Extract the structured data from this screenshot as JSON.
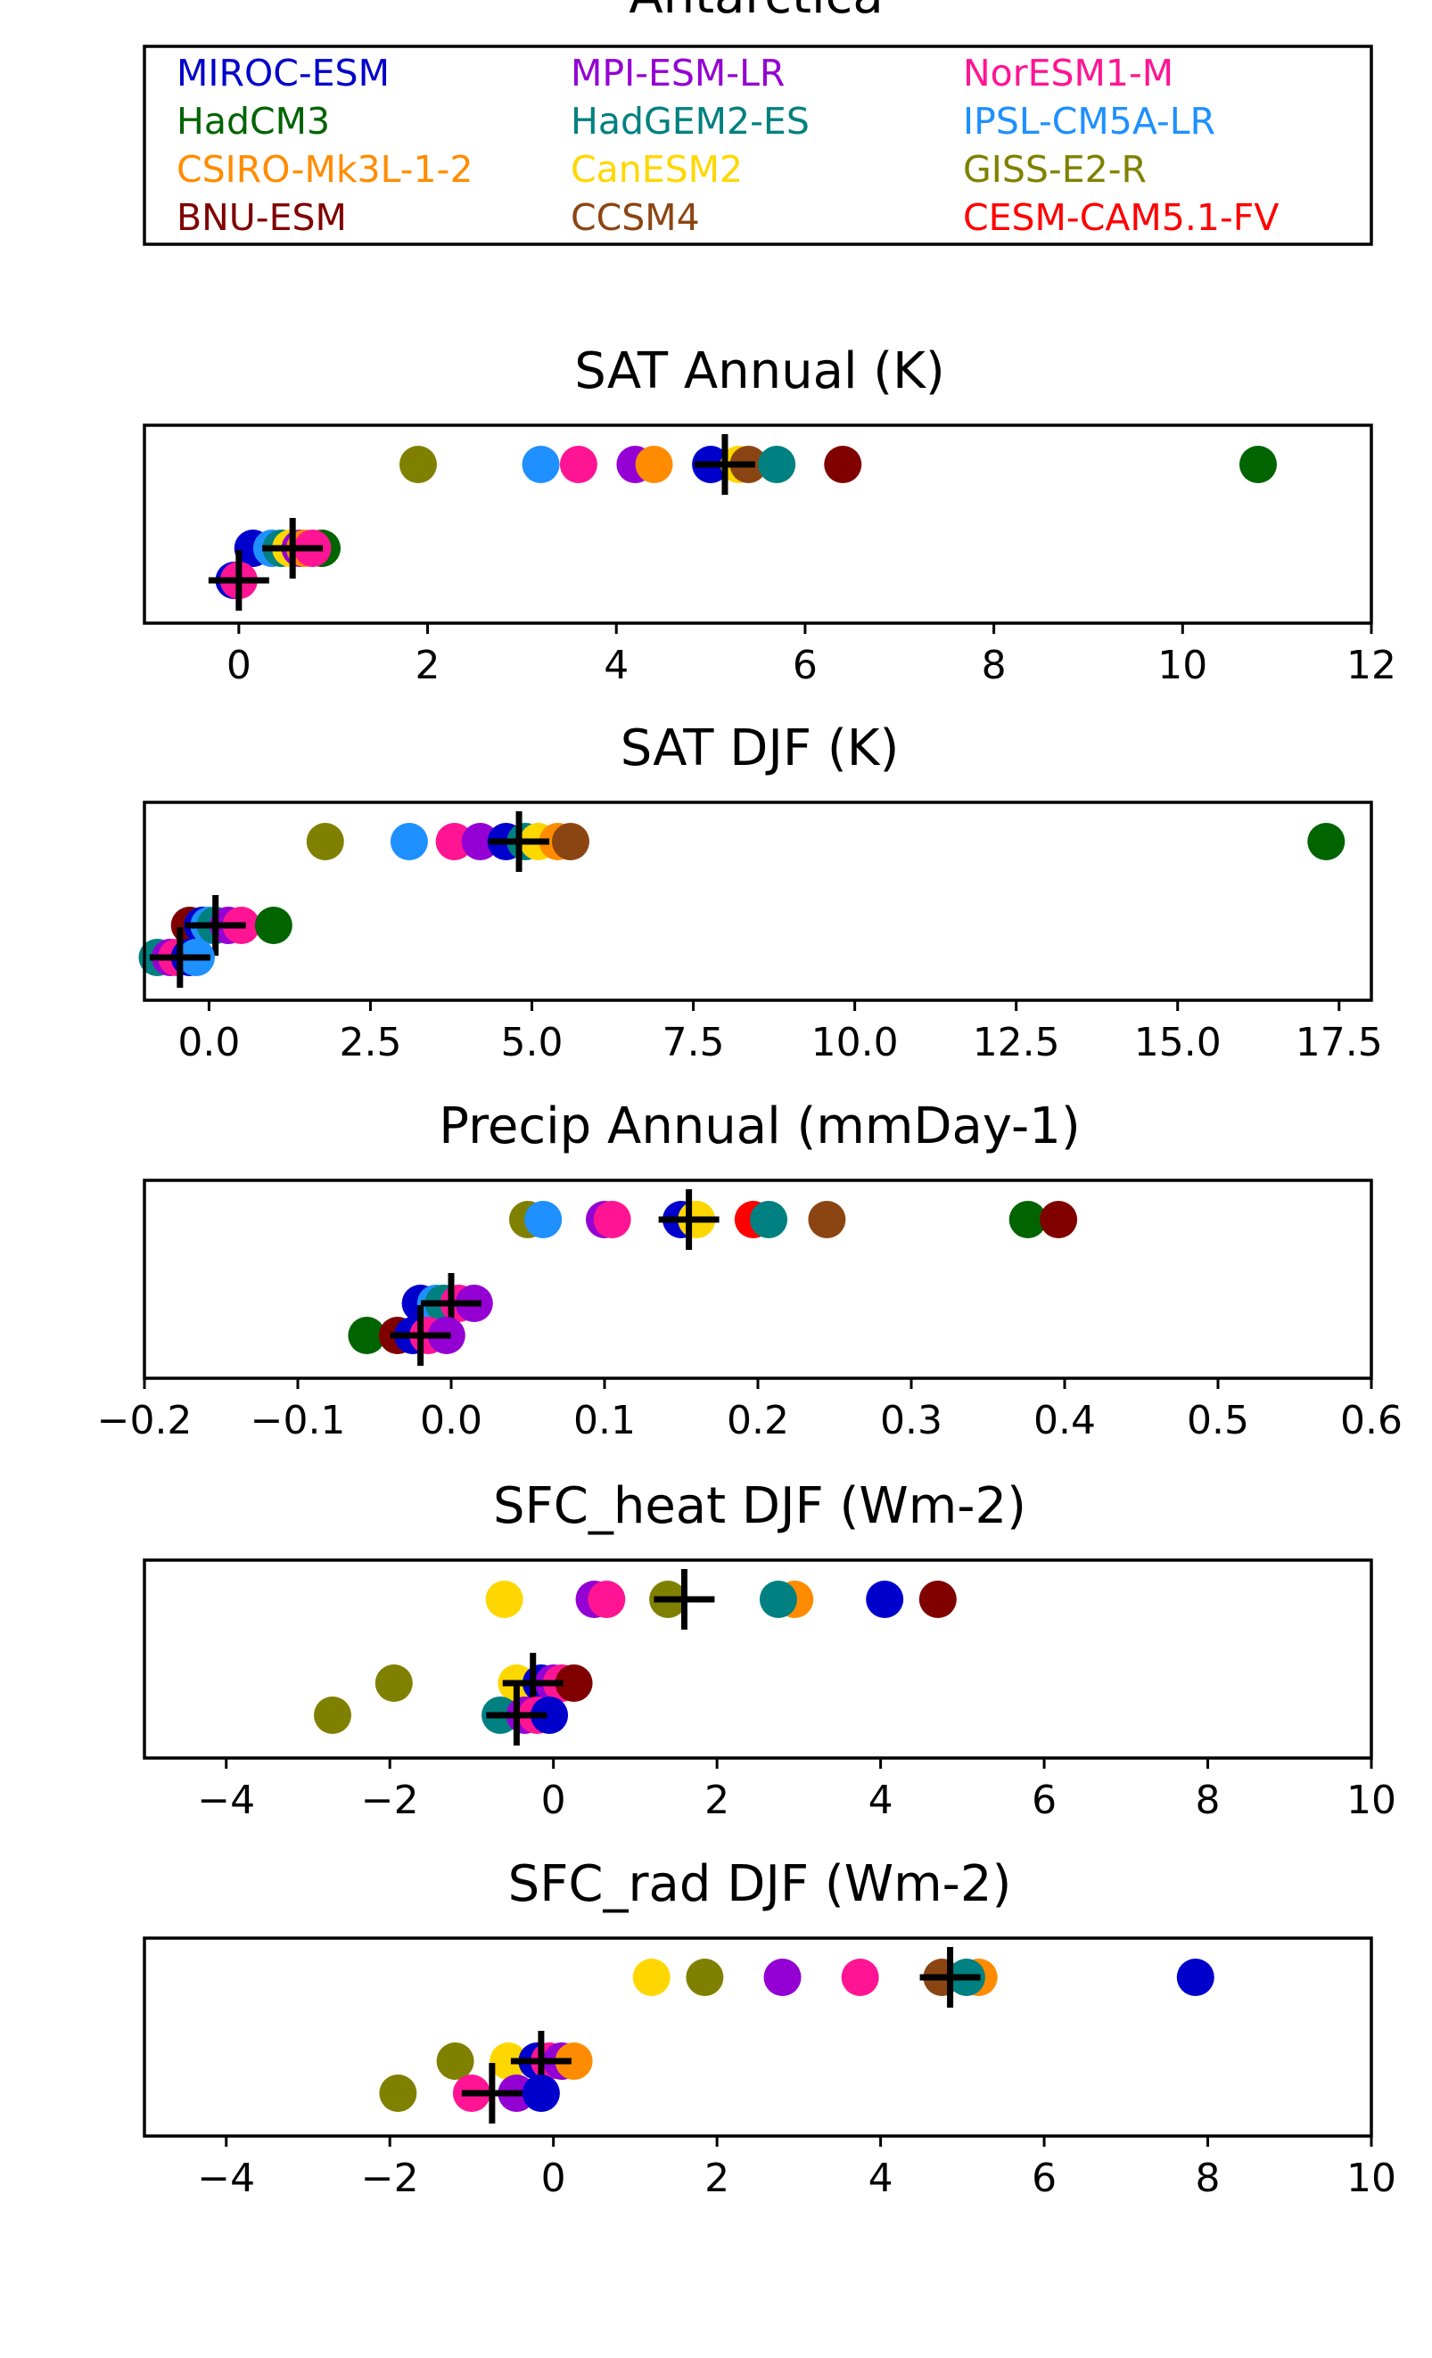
{
  "figure": {
    "title": "Antarctica"
  },
  "legend": {
    "entries": [
      {
        "name": "MIROC-ESM",
        "color": "#0000cc"
      },
      {
        "name": "HadCM3",
        "color": "#006400"
      },
      {
        "name": "CSIRO-Mk3L-1-2",
        "color": "#ff8c00"
      },
      {
        "name": "BNU-ESM",
        "color": "#800000"
      },
      {
        "name": "MPI-ESM-LR",
        "color": "#9400d3"
      },
      {
        "name": "HadGEM2-ES",
        "color": "#008080"
      },
      {
        "name": "CanESM2",
        "color": "#ffd700"
      },
      {
        "name": "CCSM4",
        "color": "#8b4513"
      },
      {
        "name": "NorESM1-M",
        "color": "#ff1493"
      },
      {
        "name": "IPSL-CM5A-LR",
        "color": "#1e90ff"
      },
      {
        "name": "GISS-E2-R",
        "color": "#808000"
      },
      {
        "name": "CESM-CAM5.1-FV",
        "color": "#ff0000"
      }
    ]
  },
  "chart_data": [
    {
      "type": "scatter",
      "title": "SAT Annual (K)",
      "xlim": [
        -1,
        12
      ],
      "xticks": [
        0,
        2,
        4,
        6,
        8,
        10,
        12
      ],
      "xtick_labels": [
        "0",
        "2",
        "4",
        "6",
        "8",
        "10",
        "12"
      ],
      "rows": [
        {
          "points": [
            {
              "model": "GISS-E2-R",
              "x": 1.9
            },
            {
              "model": "IPSL-CM5A-LR",
              "x": 3.2
            },
            {
              "model": "NorESM1-M",
              "x": 3.6
            },
            {
              "model": "MPI-ESM-LR",
              "x": 4.2
            },
            {
              "model": "CSIRO-Mk3L-1-2",
              "x": 4.4
            },
            {
              "model": "MIROC-ESM",
              "x": 5.0
            },
            {
              "model": "CanESM2",
              "x": 5.3
            },
            {
              "model": "CCSM4",
              "x": 5.4
            },
            {
              "model": "HadGEM2-ES",
              "x": 5.7
            },
            {
              "model": "BNU-ESM",
              "x": 6.4
            },
            {
              "model": "HadCM3",
              "x": 10.8
            }
          ],
          "mean": 5.15
        },
        {
          "points": [
            {
              "model": "MIROC-ESM",
              "x": 0.15
            },
            {
              "model": "IPSL-CM5A-LR",
              "x": 0.35
            },
            {
              "model": "HadGEM2-ES",
              "x": 0.45
            },
            {
              "model": "CanESM2",
              "x": 0.55
            },
            {
              "model": "MPI-ESM-LR",
              "x": 0.65
            },
            {
              "model": "CSIRO-Mk3L-1-2",
              "x": 0.7
            },
            {
              "model": "HadCM3",
              "x": 0.88
            },
            {
              "model": "NorESM1-M",
              "x": 0.78
            }
          ],
          "mean": 0.57
        },
        {
          "points": [
            {
              "model": "MIROC-ESM",
              "x": -0.05
            },
            {
              "model": "MPI-ESM-LR",
              "x": 0.0
            },
            {
              "model": "NorESM1-M",
              "x": 0.0
            }
          ],
          "mean": 0.0
        }
      ]
    },
    {
      "type": "scatter",
      "title": "SAT DJF (K)",
      "xlim": [
        -1,
        18
      ],
      "xticks": [
        0,
        2.5,
        5,
        7.5,
        10,
        12.5,
        15,
        17.5
      ],
      "xtick_labels": [
        "0.0",
        "2.5",
        "5.0",
        "7.5",
        "10.0",
        "12.5",
        "15.0",
        "17.5"
      ],
      "rows": [
        {
          "points": [
            {
              "model": "GISS-E2-R",
              "x": 1.8
            },
            {
              "model": "IPSL-CM5A-LR",
              "x": 3.1
            },
            {
              "model": "NorESM1-M",
              "x": 3.8
            },
            {
              "model": "MPI-ESM-LR",
              "x": 4.2
            },
            {
              "model": "MIROC-ESM",
              "x": 4.6
            },
            {
              "model": "HadGEM2-ES",
              "x": 4.9
            },
            {
              "model": "CanESM2",
              "x": 5.1
            },
            {
              "model": "CSIRO-Mk3L-1-2",
              "x": 5.4
            },
            {
              "model": "CCSM4",
              "x": 5.6
            },
            {
              "model": "HadCM3",
              "x": 17.3
            }
          ],
          "mean": 4.8
        },
        {
          "points": [
            {
              "model": "BNU-ESM",
              "x": -0.3
            },
            {
              "model": "MIROC-ESM",
              "x": -0.1
            },
            {
              "model": "IPSL-CM5A-LR",
              "x": 0.0
            },
            {
              "model": "HadGEM2-ES",
              "x": 0.1
            },
            {
              "model": "MPI-ESM-LR",
              "x": 0.3
            },
            {
              "model": "NorESM1-M",
              "x": 0.5
            },
            {
              "model": "HadCM3",
              "x": 1.0
            }
          ],
          "mean": 0.1
        },
        {
          "points": [
            {
              "model": "HadGEM2-ES",
              "x": -0.8
            },
            {
              "model": "MPI-ESM-LR",
              "x": -0.6
            },
            {
              "model": "NorESM1-M",
              "x": -0.5
            },
            {
              "model": "MIROC-ESM",
              "x": -0.3
            },
            {
              "model": "IPSL-CM5A-LR",
              "x": -0.2
            }
          ],
          "mean": -0.45
        }
      ]
    },
    {
      "type": "scatter",
      "title": "Precip Annual (mmDay-1)",
      "xlim": [
        -0.2,
        0.6
      ],
      "xticks": [
        -0.2,
        -0.1,
        0.0,
        0.1,
        0.2,
        0.3,
        0.4,
        0.5,
        0.6
      ],
      "xtick_labels": [
        "−0.2",
        "−0.1",
        "0.0",
        "0.1",
        "0.2",
        "0.3",
        "0.4",
        "0.5",
        "0.6"
      ],
      "rows": [
        {
          "points": [
            {
              "model": "GISS-E2-R",
              "x": 0.05
            },
            {
              "model": "IPSL-CM5A-LR",
              "x": 0.06
            },
            {
              "model": "MPI-ESM-LR",
              "x": 0.1
            },
            {
              "model": "NorESM1-M",
              "x": 0.105
            },
            {
              "model": "MIROC-ESM",
              "x": 0.15
            },
            {
              "model": "CanESM2",
              "x": 0.16
            },
            {
              "model": "CESM-CAM5.1-FV",
              "x": 0.197
            },
            {
              "model": "HadGEM2-ES",
              "x": 0.207
            },
            {
              "model": "CCSM4",
              "x": 0.245
            },
            {
              "model": "HadCM3",
              "x": 0.376
            },
            {
              "model": "BNU-ESM",
              "x": 0.396
            }
          ],
          "mean": 0.155
        },
        {
          "points": [
            {
              "model": "MIROC-ESM",
              "x": -0.02
            },
            {
              "model": "IPSL-CM5A-LR",
              "x": -0.01
            },
            {
              "model": "HadGEM2-ES",
              "x": -0.005
            },
            {
              "model": "NorESM1-M",
              "x": 0.005
            },
            {
              "model": "MPI-ESM-LR",
              "x": 0.015
            }
          ],
          "mean": 0.0
        },
        {
          "points": [
            {
              "model": "HadCM3",
              "x": -0.055
            },
            {
              "model": "BNU-ESM",
              "x": -0.035
            },
            {
              "model": "MIROC-ESM",
              "x": -0.025
            },
            {
              "model": "NorESM1-M",
              "x": -0.015
            },
            {
              "model": "MPI-ESM-LR",
              "x": -0.003
            }
          ],
          "mean": -0.02
        }
      ]
    },
    {
      "type": "scatter",
      "title": "SFC_heat DJF (Wm-2)",
      "xlim": [
        -5,
        10
      ],
      "xticks": [
        -4,
        -2,
        0,
        2,
        4,
        6,
        8,
        10
      ],
      "xtick_labels": [
        "−4",
        "−2",
        "0",
        "2",
        "4",
        "6",
        "8",
        "10"
      ],
      "rows": [
        {
          "points": [
            {
              "model": "CanESM2",
              "x": -0.6
            },
            {
              "model": "MPI-ESM-LR",
              "x": 0.5
            },
            {
              "model": "NorESM1-M",
              "x": 0.65
            },
            {
              "model": "GISS-E2-R",
              "x": 1.4
            },
            {
              "model": "CSIRO-Mk3L-1-2",
              "x": 2.95
            },
            {
              "model": "HadGEM2-ES",
              "x": 2.75
            },
            {
              "model": "MIROC-ESM",
              "x": 4.05
            },
            {
              "model": "BNU-ESM",
              "x": 4.7
            }
          ],
          "mean": 1.6
        },
        {
          "points": [
            {
              "model": "GISS-E2-R",
              "x": -1.95
            },
            {
              "model": "CanESM2",
              "x": -0.45
            },
            {
              "model": "MIROC-ESM",
              "x": -0.15
            },
            {
              "model": "MPI-ESM-LR",
              "x": 0.0
            },
            {
              "model": "NorESM1-M",
              "x": 0.1
            },
            {
              "model": "BNU-ESM",
              "x": 0.25
            }
          ],
          "mean": -0.25
        },
        {
          "points": [
            {
              "model": "GISS-E2-R",
              "x": -2.7
            },
            {
              "model": "HadGEM2-ES",
              "x": -0.65
            },
            {
              "model": "MPI-ESM-LR",
              "x": -0.35
            },
            {
              "model": "NorESM1-M",
              "x": -0.2
            },
            {
              "model": "MIROC-ESM",
              "x": -0.05
            }
          ],
          "mean": -0.45
        }
      ]
    },
    {
      "type": "scatter",
      "title": "SFC_rad DJF (Wm-2)",
      "xlim": [
        -5,
        10
      ],
      "xticks": [
        -4,
        -2,
        0,
        2,
        4,
        6,
        8,
        10
      ],
      "xtick_labels": [
        "−4",
        "−2",
        "0",
        "2",
        "4",
        "6",
        "8",
        "10"
      ],
      "rows": [
        {
          "points": [
            {
              "model": "CanESM2",
              "x": 1.2
            },
            {
              "model": "GISS-E2-R",
              "x": 1.85
            },
            {
              "model": "MPI-ESM-LR",
              "x": 2.8
            },
            {
              "model": "NorESM1-M",
              "x": 3.75
            },
            {
              "model": "CCSM4",
              "x": 4.75
            },
            {
              "model": "CSIRO-Mk3L-1-2",
              "x": 5.2
            },
            {
              "model": "HadGEM2-ES",
              "x": 5.05
            },
            {
              "model": "MIROC-ESM",
              "x": 7.85
            }
          ],
          "mean": 4.85
        },
        {
          "points": [
            {
              "model": "GISS-E2-R",
              "x": -1.2
            },
            {
              "model": "CanESM2",
              "x": -0.55
            },
            {
              "model": "MIROC-ESM",
              "x": -0.2
            },
            {
              "model": "NorESM1-M",
              "x": -0.05
            },
            {
              "model": "MPI-ESM-LR",
              "x": 0.1
            },
            {
              "model": "CSIRO-Mk3L-1-2",
              "x": 0.25
            }
          ],
          "mean": -0.15
        },
        {
          "points": [
            {
              "model": "GISS-E2-R",
              "x": -1.9
            },
            {
              "model": "NorESM1-M",
              "x": -1.0
            },
            {
              "model": "MPI-ESM-LR",
              "x": -0.45
            },
            {
              "model": "MIROC-ESM",
              "x": -0.15
            }
          ],
          "mean": -0.75
        }
      ]
    }
  ]
}
